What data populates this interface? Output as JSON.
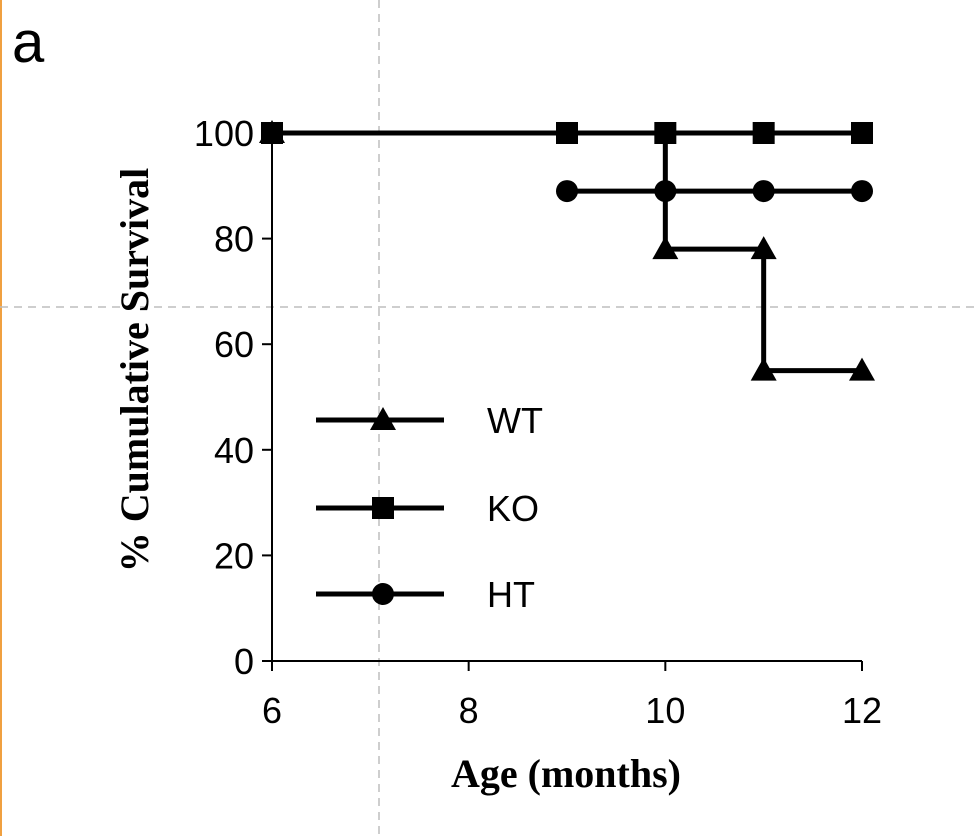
{
  "panel_label": "a",
  "colors": {
    "frame": "#f0a040",
    "ink": "#000000",
    "guide": "#bdbdbd"
  },
  "chart_data": {
    "type": "line",
    "step": true,
    "title": "",
    "xlabel": "Age (months)",
    "ylabel": "% Cumulative Survival",
    "xlim": [
      6,
      12
    ],
    "ylim": [
      0,
      100
    ],
    "xticks": [
      6,
      8,
      10,
      12
    ],
    "yticks": [
      0,
      20,
      40,
      60,
      80,
      100
    ],
    "grid": false,
    "legend": "center-left",
    "series": [
      {
        "name": "WT",
        "marker": "triangle",
        "x": [
          6,
          10,
          11,
          11,
          12
        ],
        "y": [
          100,
          78,
          78,
          55,
          55
        ]
      },
      {
        "name": "KO",
        "marker": "square",
        "x": [
          6,
          9,
          10,
          11,
          12
        ],
        "y": [
          100,
          100,
          100,
          100,
          100
        ]
      },
      {
        "name": "HT",
        "marker": "circle",
        "x": [
          9,
          10,
          11,
          12
        ],
        "y": [
          89,
          89,
          89,
          89
        ]
      }
    ]
  }
}
